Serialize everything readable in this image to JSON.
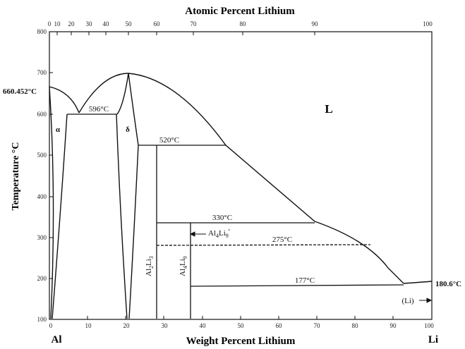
{
  "top_axis": {
    "title": "Atomic Percent Lithium",
    "ticks": [
      "0",
      "10",
      "20",
      "30",
      "40",
      "50",
      "60",
      "70",
      "80",
      "90",
      "100"
    ]
  },
  "bottom_axis": {
    "title": "Weight Percent Lithium",
    "ticks": [
      "0",
      "10",
      "20",
      "30",
      "40",
      "50",
      "60",
      "70",
      "80",
      "90",
      "100"
    ],
    "left_element": "Al",
    "right_element": "Li"
  },
  "left_axis": {
    "title": "Temperature °C",
    "ticks": [
      "100",
      "200",
      "300",
      "400",
      "500",
      "600",
      "700",
      "800"
    ]
  },
  "annotations": {
    "al_melting": "660.452°C",
    "li_melting": "180.6°C",
    "t596": "596°C",
    "t520": "520°C",
    "t330": "330°C",
    "t275": "275°C",
    "t177": "177°C",
    "liquid": "L",
    "alpha": "α",
    "delta": "δ",
    "li_phase": "(Li)",
    "al2li3_base": "Al",
    "al2li3_sub1": "2",
    "al2li3_mid": "Li",
    "al2li3_sub2": "3",
    "al4li9_base": "Al",
    "al4li9_sub1": "4",
    "al4li9_mid": "Li",
    "al4li9_sub2": "9",
    "al4li9_prime_base": "Al",
    "al4li9_prime_sub1": "4",
    "al4li9_prime_mid": "Li",
    "al4li9_prime_sub2": "9",
    "al4li9_prime_mark": "'"
  }
}
